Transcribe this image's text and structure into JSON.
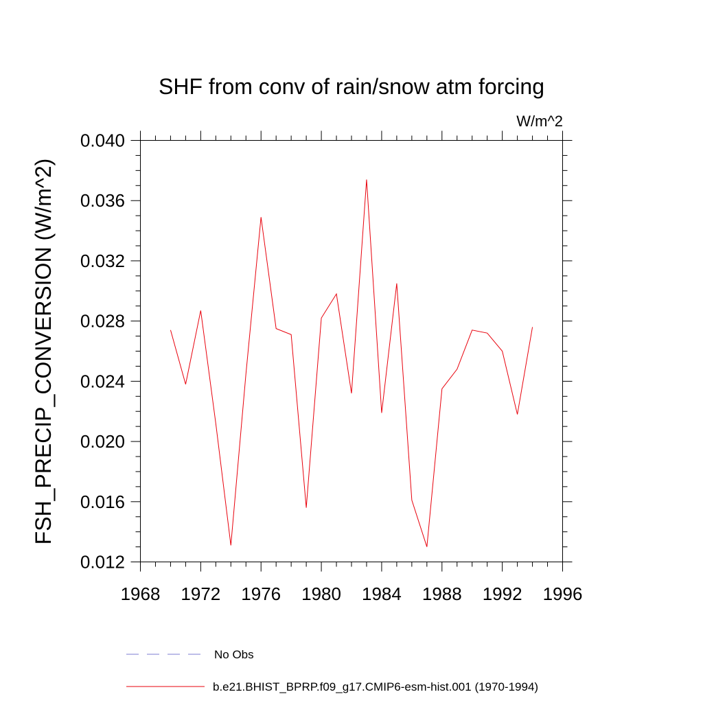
{
  "chart_data": {
    "type": "line",
    "title": "SHF from conv of rain/snow atm forcing",
    "units_label": "W/m^2",
    "xlabel": "",
    "ylabel": "FSH_PRECIP_CONVERSION  (W/m^2)",
    "xlim": [
      1968,
      1996
    ],
    "ylim": [
      0.012,
      0.04
    ],
    "x_ticks": [
      "1968",
      "1972",
      "1976",
      "1980",
      "1984",
      "1988",
      "1992",
      "1996"
    ],
    "y_ticks": [
      "0.012",
      "0.016",
      "0.020",
      "0.024",
      "0.028",
      "0.032",
      "0.036",
      "0.040"
    ],
    "grid": false,
    "legend_position": "bottom",
    "series": [
      {
        "name": "b.e21.BHIST_BPRP.f09_g17.CMIP6-esm-hist.001 (1970-1994)",
        "color": "#e8000b",
        "x": [
          1970,
          1971,
          1972,
          1973,
          1974,
          1975,
          1976,
          1977,
          1978,
          1979,
          1980,
          1981,
          1982,
          1983,
          1984,
          1985,
          1986,
          1987,
          1988,
          1989,
          1990,
          1991,
          1992,
          1993,
          1994
        ],
        "y": [
          0.0274,
          0.0238,
          0.0287,
          0.0212,
          0.0131,
          0.0245,
          0.0349,
          0.0275,
          0.0271,
          0.0156,
          0.0282,
          0.0298,
          0.0232,
          0.0374,
          0.0219,
          0.0305,
          0.0161,
          0.013,
          0.0235,
          0.0248,
          0.0274,
          0.0272,
          0.026,
          0.0218,
          0.0276
        ]
      }
    ],
    "legend": [
      {
        "label": "No Obs",
        "style": "dashed",
        "color": "#7b7bd1"
      },
      {
        "label": "b.e21.BHIST_BPRP.f09_g17.CMIP6-esm-hist.001 (1970-1994)",
        "style": "solid",
        "color": "#e8000b"
      }
    ]
  }
}
